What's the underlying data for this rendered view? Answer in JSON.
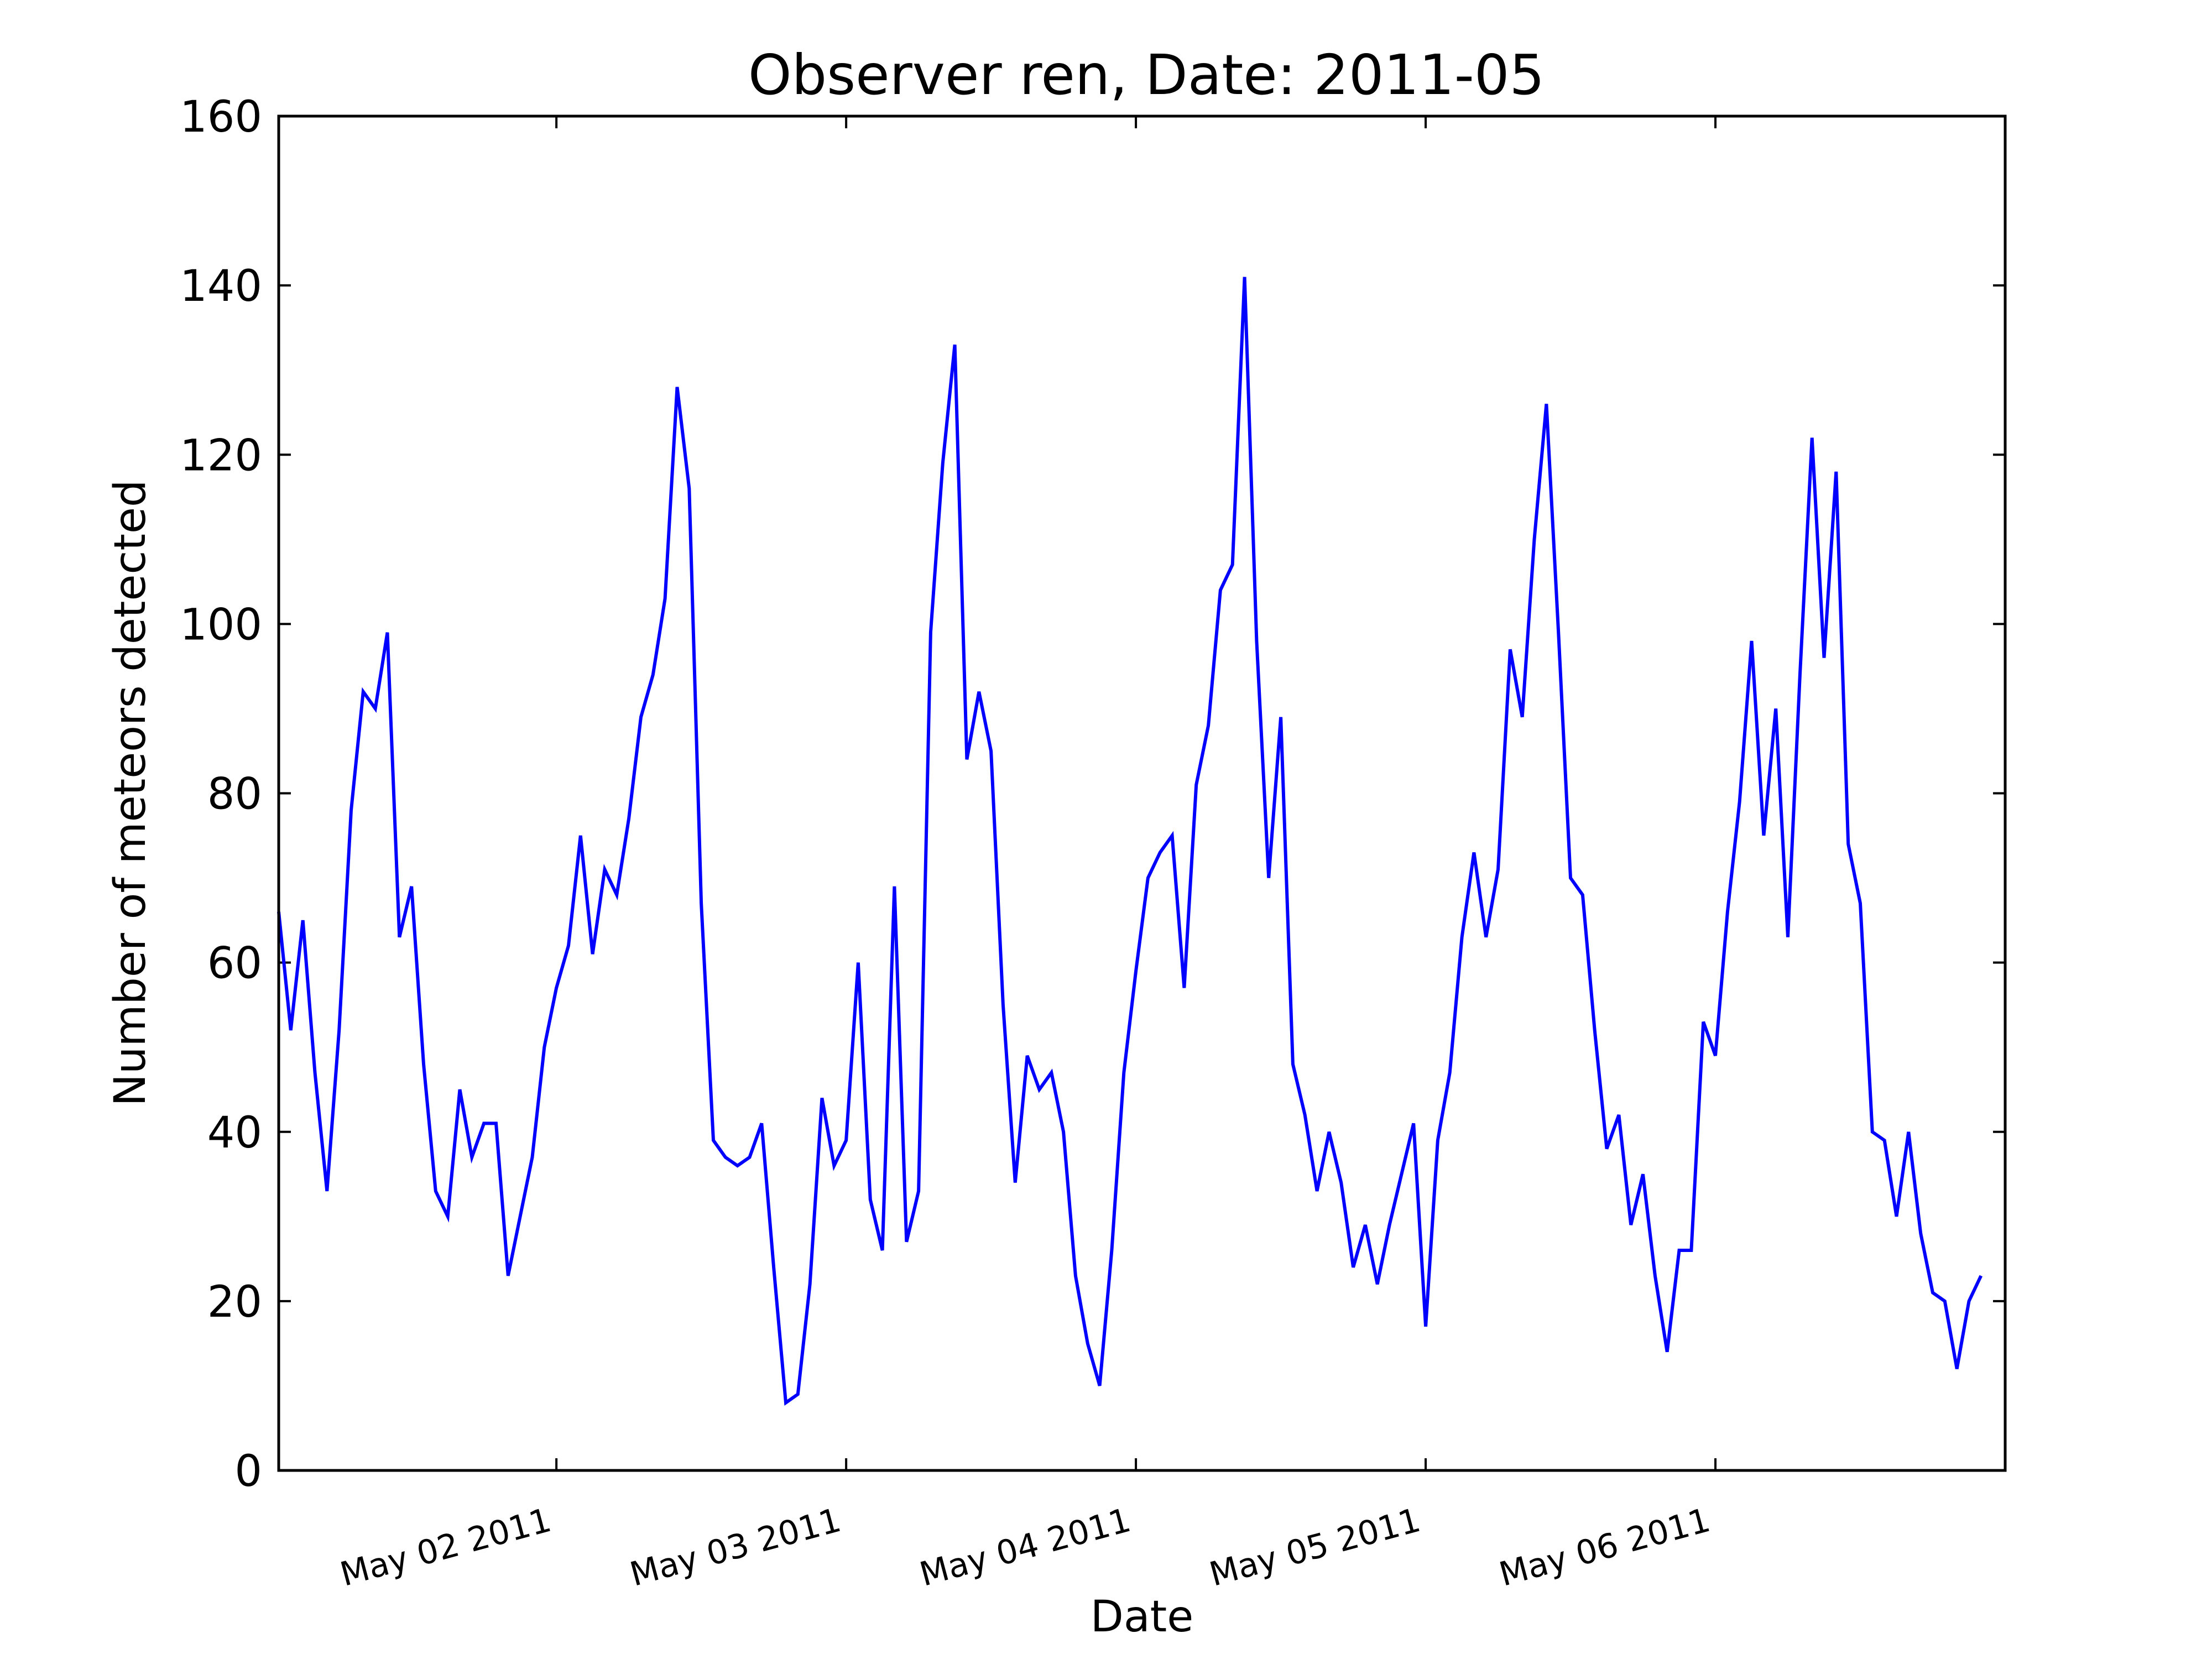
{
  "chart_data": {
    "type": "line",
    "title": "Observer ren, Date: 2011-05",
    "xlabel": "Date",
    "ylabel": "Number of meteors detected",
    "ylim": [
      0,
      160
    ],
    "xlim": [
      "2011-05-01T01:00",
      "2011-05-07T00:00"
    ],
    "yticks": [
      0,
      20,
      40,
      60,
      80,
      100,
      120,
      140,
      160
    ],
    "xticks": [
      {
        "value": "2011-05-02T00:00",
        "label": "May 02 2011"
      },
      {
        "value": "2011-05-03T00:00",
        "label": "May 03 2011"
      },
      {
        "value": "2011-05-04T00:00",
        "label": "May 04 2011"
      },
      {
        "value": "2011-05-05T00:00",
        "label": "May 05 2011"
      },
      {
        "value": "2011-05-06T00:00",
        "label": "May 06 2011"
      }
    ],
    "grid": false,
    "line_color": "#0000ff",
    "x_start": "2011-05-01T01:00",
    "x_step": "1 hour",
    "values": [
      66,
      52,
      65,
      47,
      33,
      52,
      78,
      92,
      90,
      99,
      63,
      69,
      48,
      33,
      30,
      45,
      37,
      41,
      41,
      23,
      30,
      37,
      50,
      57,
      62,
      75,
      61,
      71,
      68,
      77,
      89,
      94,
      103,
      128,
      116,
      67,
      39,
      37,
      36,
      37,
      41,
      24,
      8,
      9,
      22,
      44,
      36,
      39,
      60,
      32,
      26,
      69,
      27,
      33,
      99,
      119,
      133,
      84,
      92,
      85,
      55,
      34,
      49,
      45,
      47,
      40,
      23,
      15,
      10,
      26,
      47,
      59,
      70,
      73,
      75,
      57,
      81,
      88,
      104,
      107,
      141,
      98,
      70,
      89,
      48,
      42,
      33,
      40,
      34,
      24,
      29,
      22,
      29,
      35,
      41,
      17,
      39,
      47,
      63,
      73,
      63,
      71,
      97,
      89,
      110,
      126,
      99,
      70,
      68,
      52,
      38,
      42,
      29,
      35,
      23,
      14,
      26,
      26,
      53,
      49,
      66,
      79,
      98,
      75,
      90,
      63,
      94,
      122,
      96,
      118,
      74,
      67,
      40,
      39,
      30,
      40,
      28,
      21,
      20,
      12,
      20,
      23
    ]
  }
}
